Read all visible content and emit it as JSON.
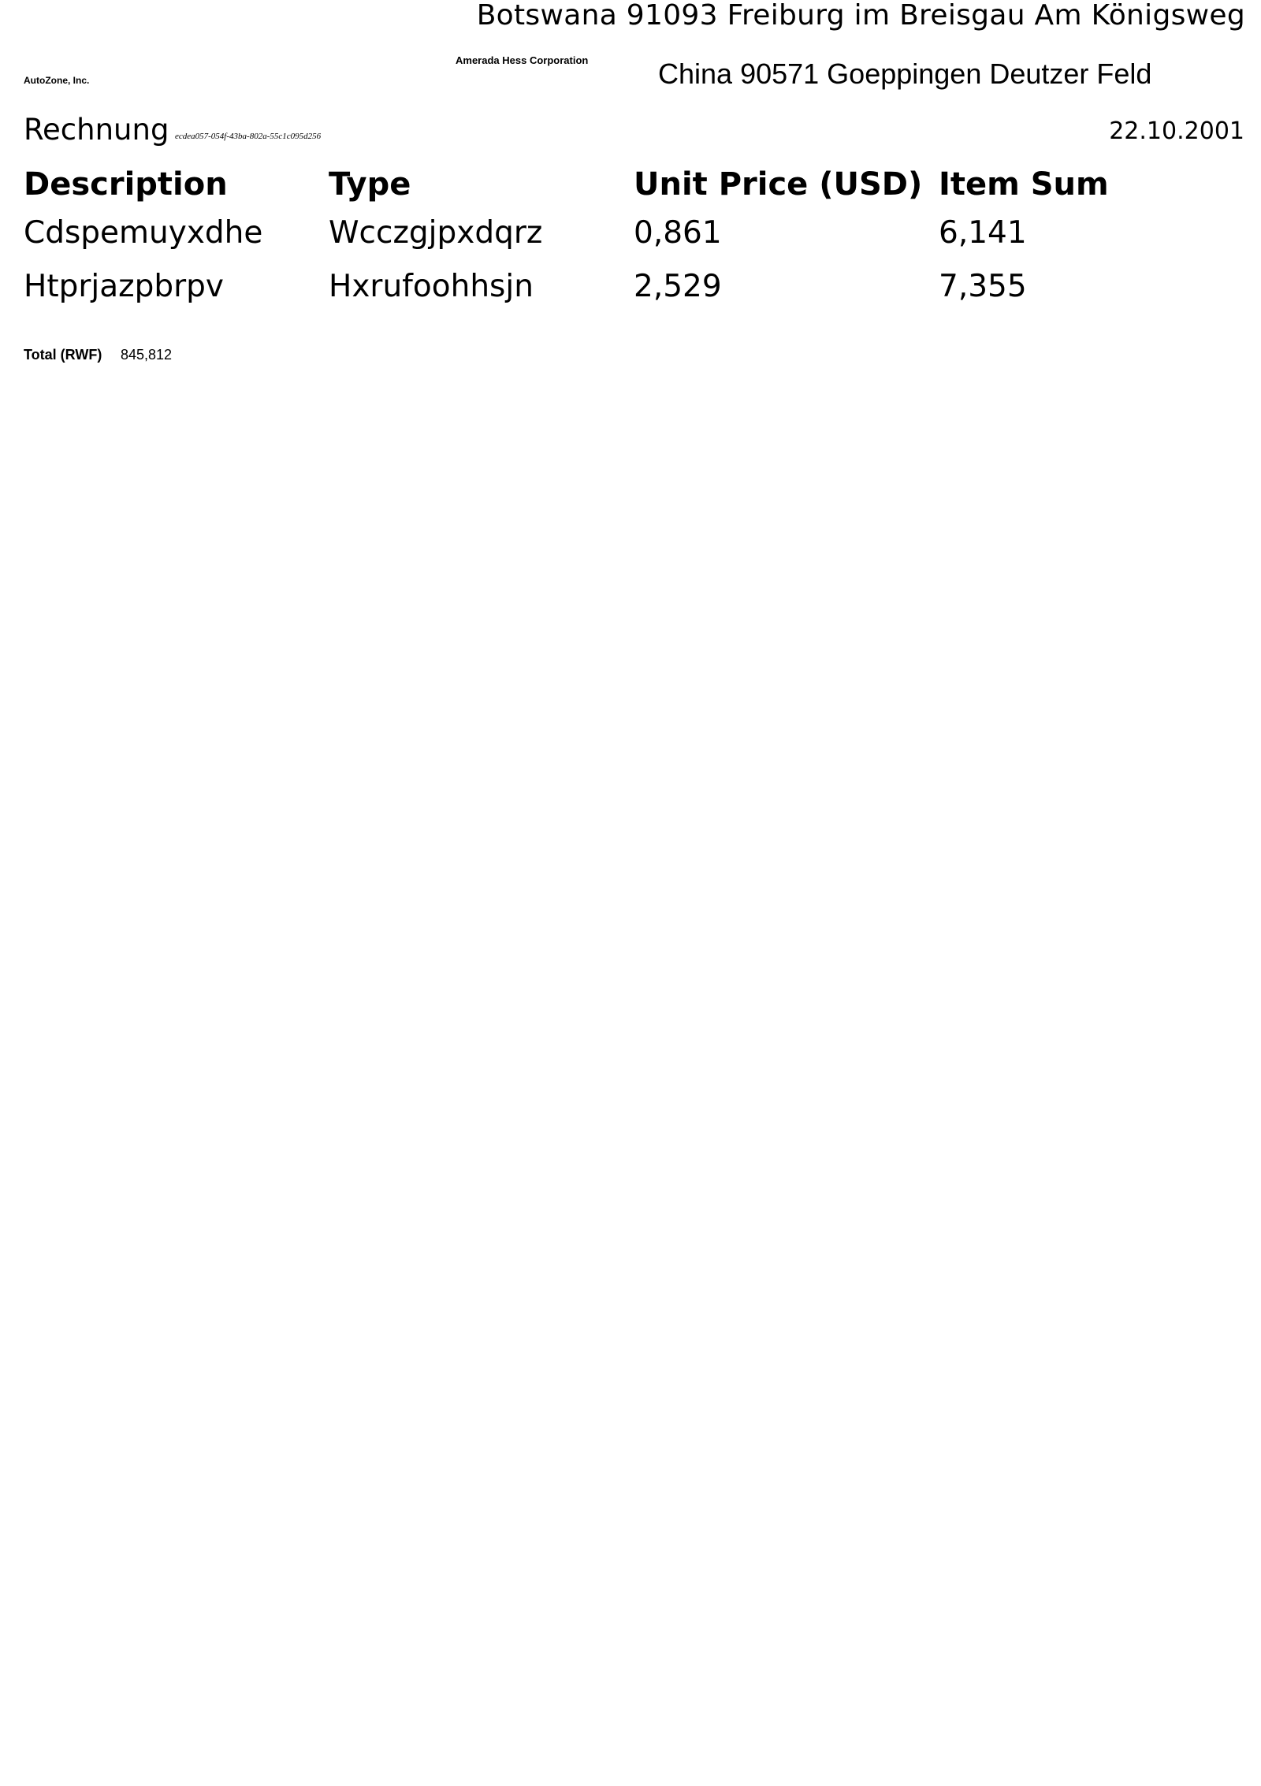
{
  "header": {
    "sender_address": "Botswana 91093 Freiburg im Breisgau Am Königsweg",
    "sender_company": "Amerada Hess Corporation",
    "recipient_company": "AutoZone, Inc.",
    "recipient_address": "China 90571 Goeppingen Deutzer Feld"
  },
  "document": {
    "title": "Rechnung",
    "id": "ecdea057-054f-43ba-802a-55c1c095d256",
    "date": "22.10.2001"
  },
  "table": {
    "headers": [
      "Description",
      "Type",
      "Unit Price (USD)",
      "Item Sum"
    ],
    "rows": [
      [
        "Cdspemuyxdhe",
        "Wcczgjpxdqrz",
        "0,861",
        "6,141"
      ],
      [
        "Htprjazpbrpv",
        "Hxrufoohhsjn",
        "2,529",
        "7,355"
      ]
    ]
  },
  "total": {
    "label": "Total (RWF)",
    "value": "845,812"
  }
}
